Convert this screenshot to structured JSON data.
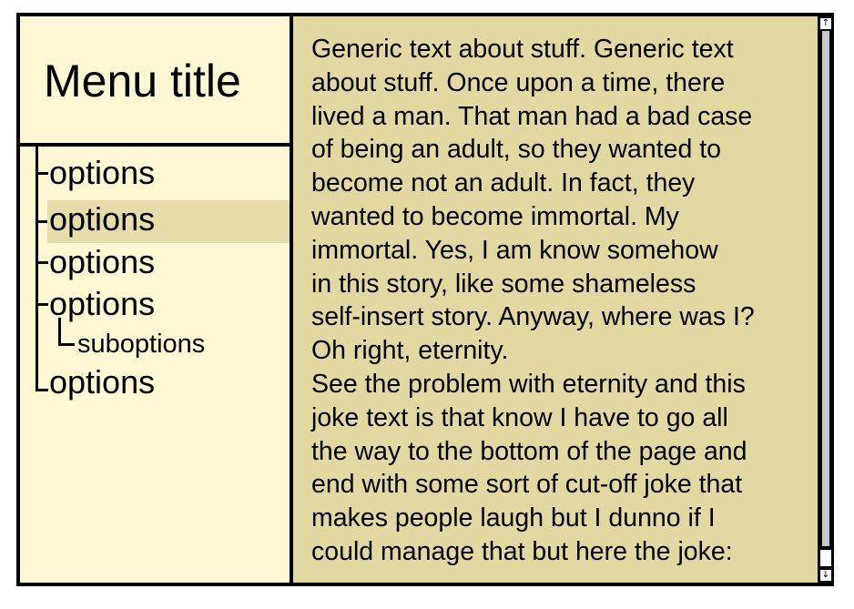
{
  "menu": {
    "title": "Menu title",
    "items": [
      {
        "label": "options"
      },
      {
        "label": "options"
      },
      {
        "label": "options"
      },
      {
        "label": "options"
      },
      {
        "label": "options"
      }
    ],
    "subitem": {
      "label": "suboptions"
    },
    "highlighted_index": 1
  },
  "content": {
    "paragraph1": "Generic text about stuff. Generic text\nabout stuff. Once upon a time, there\nlived a man. That man had a bad case\nof being an adult, so they wanted to\nbecome not an adult. In fact, they\nwanted to become immortal. My\nimmortal. Yes, I am know somehow\nin this story, like some shameless\nself-insert story. Anyway, where was I?\nOh right, eternity.",
    "paragraph2": "See the problem with eternity and this\njoke text is that know I have to go all\nthe way to the bottom of the page and\nend with some sort of cut-off joke that\nmakes people laugh but I dunno if I\ncould manage that but here the joke:"
  },
  "scrollbar": {
    "up_arrow": "↑",
    "down_arrow": "↓"
  },
  "colors": {
    "sidebar_bg": "#fdf7d4",
    "content_bg": "#e2d8a2",
    "highlight_bg": "#e6ddaa",
    "border": "#000000"
  }
}
